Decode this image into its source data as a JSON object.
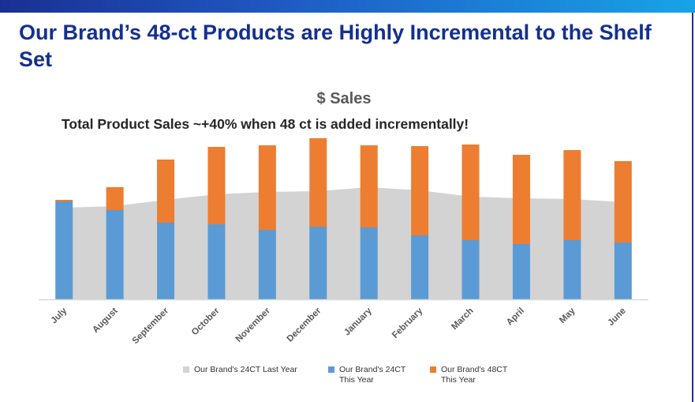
{
  "page": {
    "title": "Our Brand’s 48-ct Products are Highly Incremental to the Shelf Set"
  },
  "colors": {
    "last_year": "#d3d3d3",
    "this_year_24": "#5b9bd5",
    "this_year_48": "#ed7d31",
    "axis": "#d9d9d9",
    "title_text": "#14308f"
  },
  "chart_data": {
    "type": "bar",
    "subtype": "stacked bar with area",
    "title": "$ Sales",
    "annotation": "Total Product Sales ~+40% when 48 ct is added incrementally!",
    "categories": [
      "July",
      "August",
      "September",
      "October",
      "November",
      "December",
      "January",
      "February",
      "March",
      "April",
      "May",
      "June"
    ],
    "series": [
      {
        "name": "Our Brand's 24CT Last Year",
        "type": "area",
        "values": [
          116,
          118,
          126,
          133,
          136,
          137,
          142,
          138,
          130,
          128,
          127,
          123
        ]
      },
      {
        "name": "Our Brand's 24CT This Year",
        "type": "bar",
        "stack": "this_year",
        "values": [
          124,
          113,
          97,
          95,
          88,
          92,
          91,
          81,
          75,
          70,
          75,
          72
        ]
      },
      {
        "name": "Our Brand's 48CT This Year",
        "type": "bar",
        "stack": "this_year",
        "values": [
          2,
          29,
          80,
          98,
          107,
          112,
          104,
          113,
          121,
          113,
          114,
          103
        ]
      }
    ],
    "ylim": [
      0,
      210
    ],
    "xlabel": "",
    "ylabel": "",
    "grid": false,
    "legend_position": "bottom"
  },
  "legend": {
    "last_year": "Our Brand's 24CT Last Year",
    "this_year_24_line1": "Our Brand's 24CT",
    "this_year_24_line2": "This Year",
    "this_year_48_line1": "Our Brand's 48CT",
    "this_year_48_line2": "This Year"
  }
}
